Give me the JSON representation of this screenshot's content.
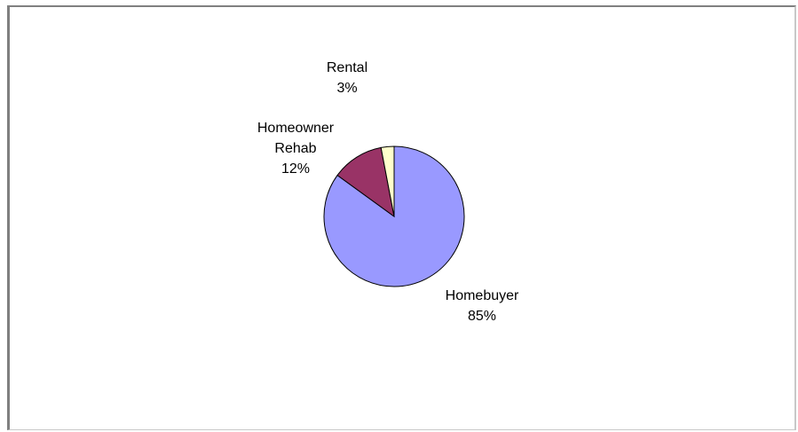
{
  "chart_data": {
    "type": "pie",
    "title": "",
    "slices": [
      {
        "name": "Homebuyer",
        "percent_label": "85%",
        "value": 85,
        "color": "#9999ff"
      },
      {
        "name": "Homeowner Rehab",
        "name_lines": [
          "Homeowner",
          "Rehab"
        ],
        "percent_label": "12%",
        "value": 12,
        "color": "#993366"
      },
      {
        "name": "Rental",
        "percent_label": "3%",
        "value": 3,
        "color": "#ffffcc"
      }
    ],
    "slice_outline_color": "#000000",
    "legend": "none"
  }
}
